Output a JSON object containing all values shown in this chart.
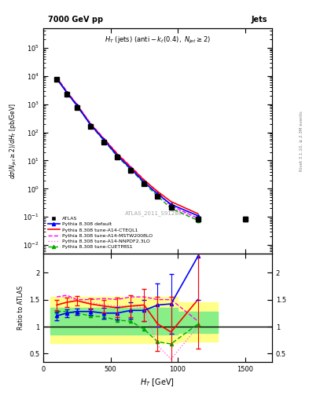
{
  "title_top": "7000 GeV pp",
  "title_right": "Jets",
  "subplot_title": "H_{T} (jets) (anti-k_{t}(0.4), N_{jet} \\geq 2)",
  "watermark": "ATLAS_2011_S9128077",
  "ylabel_main": "d\\sigma(N_{jet} \\geq 2) / dH_{T} [pb/GeV]",
  "ylabel_ratio": "Ratio to ATLAS",
  "xlabel": "H_{T} [GeV]",
  "xlim": [
    0,
    1700
  ],
  "ylim_main": [
    0.005,
    500000
  ],
  "ylim_ratio": [
    0.35,
    2.35
  ],
  "atlas_x": [
    100,
    175,
    250,
    350,
    450,
    550,
    650,
    750,
    850,
    950,
    1150,
    1500
  ],
  "atlas_y": [
    7500,
    2300,
    780,
    160,
    45,
    13,
    4.5,
    1.5,
    0.55,
    0.22,
    0.085,
    0.085
  ],
  "atlas_yerr_lo": [
    500,
    150,
    50,
    12,
    4,
    1.2,
    0.4,
    0.15,
    0.07,
    0.03,
    0.015,
    0.015
  ],
  "atlas_yerr_hi": [
    500,
    150,
    50,
    12,
    4,
    1.2,
    0.4,
    0.15,
    0.07,
    0.03,
    0.015,
    0.015
  ],
  "pythia_x": [
    100,
    175,
    250,
    350,
    450,
    550,
    650,
    750,
    850,
    950,
    1150
  ],
  "default_y": [
    8000,
    2600,
    900,
    190,
    55,
    15,
    5.2,
    1.7,
    0.65,
    0.28,
    0.11
  ],
  "cteql1_y": [
    8500,
    2700,
    950,
    200,
    58,
    17,
    5.8,
    2.0,
    0.8,
    0.35,
    0.13
  ],
  "mstw_y": [
    9000,
    2900,
    1000,
    215,
    62,
    18,
    6.2,
    2.1,
    0.75,
    0.25,
    0.09
  ],
  "nnpdf_y": [
    9000,
    2900,
    1000,
    210,
    60,
    17,
    5.9,
    2.0,
    0.7,
    0.22,
    0.085
  ],
  "cuetp_y": [
    8200,
    2600,
    890,
    185,
    52,
    14,
    4.8,
    1.55,
    0.55,
    0.2,
    0.075
  ],
  "ratio_x": [
    100,
    175,
    250,
    350,
    450,
    550,
    650,
    750,
    850,
    950,
    1150
  ],
  "ratio_default": [
    1.2,
    1.25,
    1.28,
    1.28,
    1.25,
    1.25,
    1.3,
    1.3,
    1.4,
    1.42,
    2.3
  ],
  "ratio_cteql1": [
    1.4,
    1.45,
    1.48,
    1.42,
    1.38,
    1.35,
    1.38,
    1.4,
    1.05,
    0.9,
    1.5
  ],
  "ratio_mstw": [
    1.55,
    1.58,
    1.5,
    1.5,
    1.52,
    1.5,
    1.55,
    1.55,
    1.5,
    1.5,
    1.1
  ],
  "ratio_nnpdf": [
    1.55,
    1.55,
    1.48,
    1.45,
    1.4,
    1.38,
    1.38,
    1.35,
    0.65,
    0.4,
    1.0
  ],
  "ratio_cuetp": [
    1.28,
    1.28,
    1.25,
    1.2,
    1.18,
    1.12,
    1.1,
    0.95,
    0.72,
    0.68,
    1.05
  ],
  "ratio_default_err": [
    0.08,
    0.07,
    0.06,
    0.06,
    0.1,
    0.12,
    0.15,
    0.2,
    0.4,
    0.55,
    0.8
  ],
  "ratio_cteql1_err": [
    0.1,
    0.09,
    0.09,
    0.1,
    0.12,
    0.18,
    0.2,
    0.3,
    0.5,
    0.65,
    0.9
  ],
  "band_yellow_lo": [
    0.7,
    0.7,
    0.7,
    0.7,
    0.7,
    0.7,
    0.7,
    0.7,
    0.7,
    0.72,
    0.72
  ],
  "band_yellow_hi": [
    1.55,
    1.55,
    1.55,
    1.55,
    1.55,
    1.55,
    1.55,
    1.55,
    1.55,
    1.45,
    1.45
  ],
  "band_green_lo": [
    0.85,
    0.85,
    0.85,
    0.85,
    0.85,
    0.85,
    0.85,
    0.85,
    0.85,
    0.88,
    0.88
  ],
  "band_green_hi": [
    1.35,
    1.35,
    1.35,
    1.35,
    1.35,
    1.35,
    1.35,
    1.35,
    1.35,
    1.28,
    1.28
  ],
  "band_x_edges": [
    50,
    200,
    300,
    400,
    500,
    600,
    700,
    800,
    900,
    1000,
    1100,
    1300
  ],
  "color_atlas": "#000000",
  "color_default": "#0000ff",
  "color_cteql1": "#ff0000",
  "color_mstw": "#ff00ff",
  "color_nnpdf": "#ff66ff",
  "color_cuetp": "#00aa00",
  "color_yellow": "#ffff88",
  "color_green": "#88ee88",
  "legend_labels": [
    "ATLAS",
    "Pythia 8.308 default",
    "Pythia 8.308 tune-A14-CTEQL1",
    "Pythia 8.308 tune-A14-MSTW2008LO",
    "Pythia 8.308 tune-A14-NNPDF2.3LO",
    "Pythia 8.308 tune-CUETP8S1"
  ]
}
